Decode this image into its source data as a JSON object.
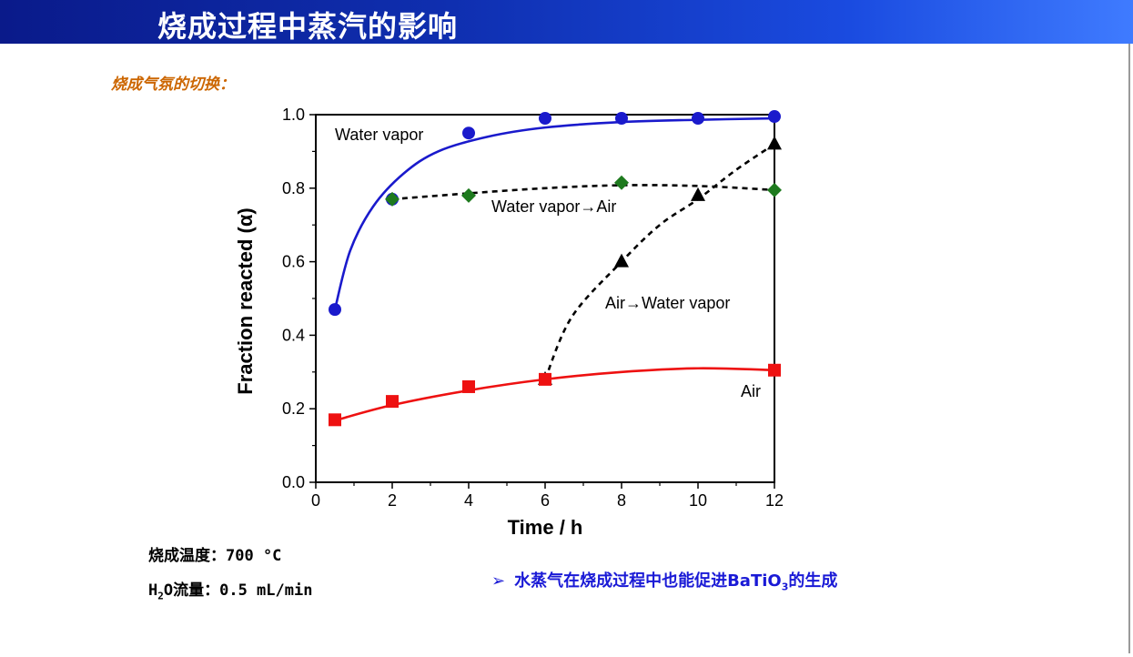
{
  "header": {
    "title": "烧成过程中蒸汽的影响"
  },
  "section_label": "烧成气氛的切换：",
  "conditions": {
    "temperature": "烧成温度：700 °C",
    "flow_prefix": "H",
    "flow_sub": "2",
    "flow_suffix": "O流量：0.5 mL/min"
  },
  "conclusion": {
    "arrow": "➢",
    "prefix": "水蒸气在烧成过程中也能促进BaTiO",
    "sub": "3",
    "suffix": "的生成"
  },
  "chart_data": {
    "type": "scatter",
    "xlabel": "Time / h",
    "ylabel": "Fraction reacted (α)",
    "xlim": [
      0,
      12
    ],
    "ylim": [
      0.0,
      1.0
    ],
    "x_ticks": [
      "0",
      "2",
      "4",
      "6",
      "8",
      "10",
      "12"
    ],
    "y_ticks": [
      "0.0",
      "0.2",
      "0.4",
      "0.6",
      "0.8",
      "1.0"
    ],
    "series": [
      {
        "name": "Water vapor",
        "marker": "circle",
        "color": "#1a1acc",
        "fit": "solid",
        "x": [
          0.5,
          2,
          4,
          6,
          8,
          10,
          12
        ],
        "y": [
          0.47,
          0.77,
          0.95,
          0.99,
          0.99,
          0.99,
          0.995
        ]
      },
      {
        "name": "Water vapor→Air",
        "marker": "diamond",
        "color": "#1e7a1e",
        "fit": "dashed",
        "x": [
          2,
          4,
          8,
          12
        ],
        "y": [
          0.77,
          0.78,
          0.815,
          0.795
        ]
      },
      {
        "name": "Air→Water vapor",
        "marker": "triangle",
        "color": "#000000",
        "fit": "dashed",
        "x": [
          6,
          8,
          10,
          12
        ],
        "y": [
          0.28,
          0.6,
          0.78,
          0.92
        ]
      },
      {
        "name": "Air",
        "marker": "square",
        "color": "#ee1111",
        "fit": "solid",
        "x": [
          0.5,
          2,
          4,
          6,
          12
        ],
        "y": [
          0.17,
          0.22,
          0.26,
          0.28,
          0.305
        ]
      }
    ],
    "annotations": [
      "Water vapor",
      "Water vapor→Air",
      "Air→Water vapor",
      "Air"
    ]
  }
}
